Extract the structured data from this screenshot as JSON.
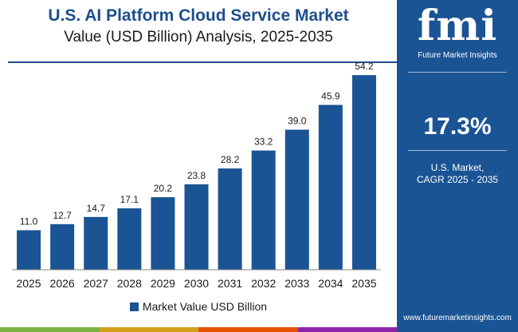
{
  "header": {
    "title": "U.S. AI Platform Cloud Service Market",
    "subtitle": "Value (USD Billion) Analysis, 2025-2035"
  },
  "side_panel": {
    "logo_letters": "fmi",
    "logo_name": "Future Market Insights",
    "cagr_value": "17.3%",
    "cagr_label_line1": "U.S. Market,",
    "cagr_label_line2": "CAGR 2025 - 2035",
    "website": "www.futuremarketinsights.com"
  },
  "colors": {
    "bar": "#1a5494",
    "title": "#1d4f8c",
    "panel": "#1a5494",
    "bottom_bar": [
      "#7cb342",
      "#d4a017",
      "#e65100",
      "#8e24aa"
    ]
  },
  "chart_data": {
    "type": "bar",
    "title": "U.S. AI Platform Cloud Service Market",
    "subtitle": "Value (USD Billion) Analysis, 2025-2035",
    "categories": [
      "2025",
      "2026",
      "2027",
      "2028",
      "2029",
      "2030",
      "2031",
      "2032",
      "2033",
      "2034",
      "2035"
    ],
    "series": [
      {
        "name": "Market Value USD Billion",
        "values": [
          11.0,
          12.7,
          14.7,
          17.1,
          20.2,
          23.8,
          28.2,
          33.2,
          39.0,
          45.9,
          54.2
        ]
      }
    ],
    "data_labels": [
      "11.0",
      "12.7",
      "14.7",
      "17.1",
      "20.2",
      "23.8",
      "28.2",
      "33.2",
      "39.0",
      "45.9",
      "54.2"
    ],
    "ylim": [
      0,
      60
    ],
    "grid": false,
    "legend_position": "bottom"
  }
}
